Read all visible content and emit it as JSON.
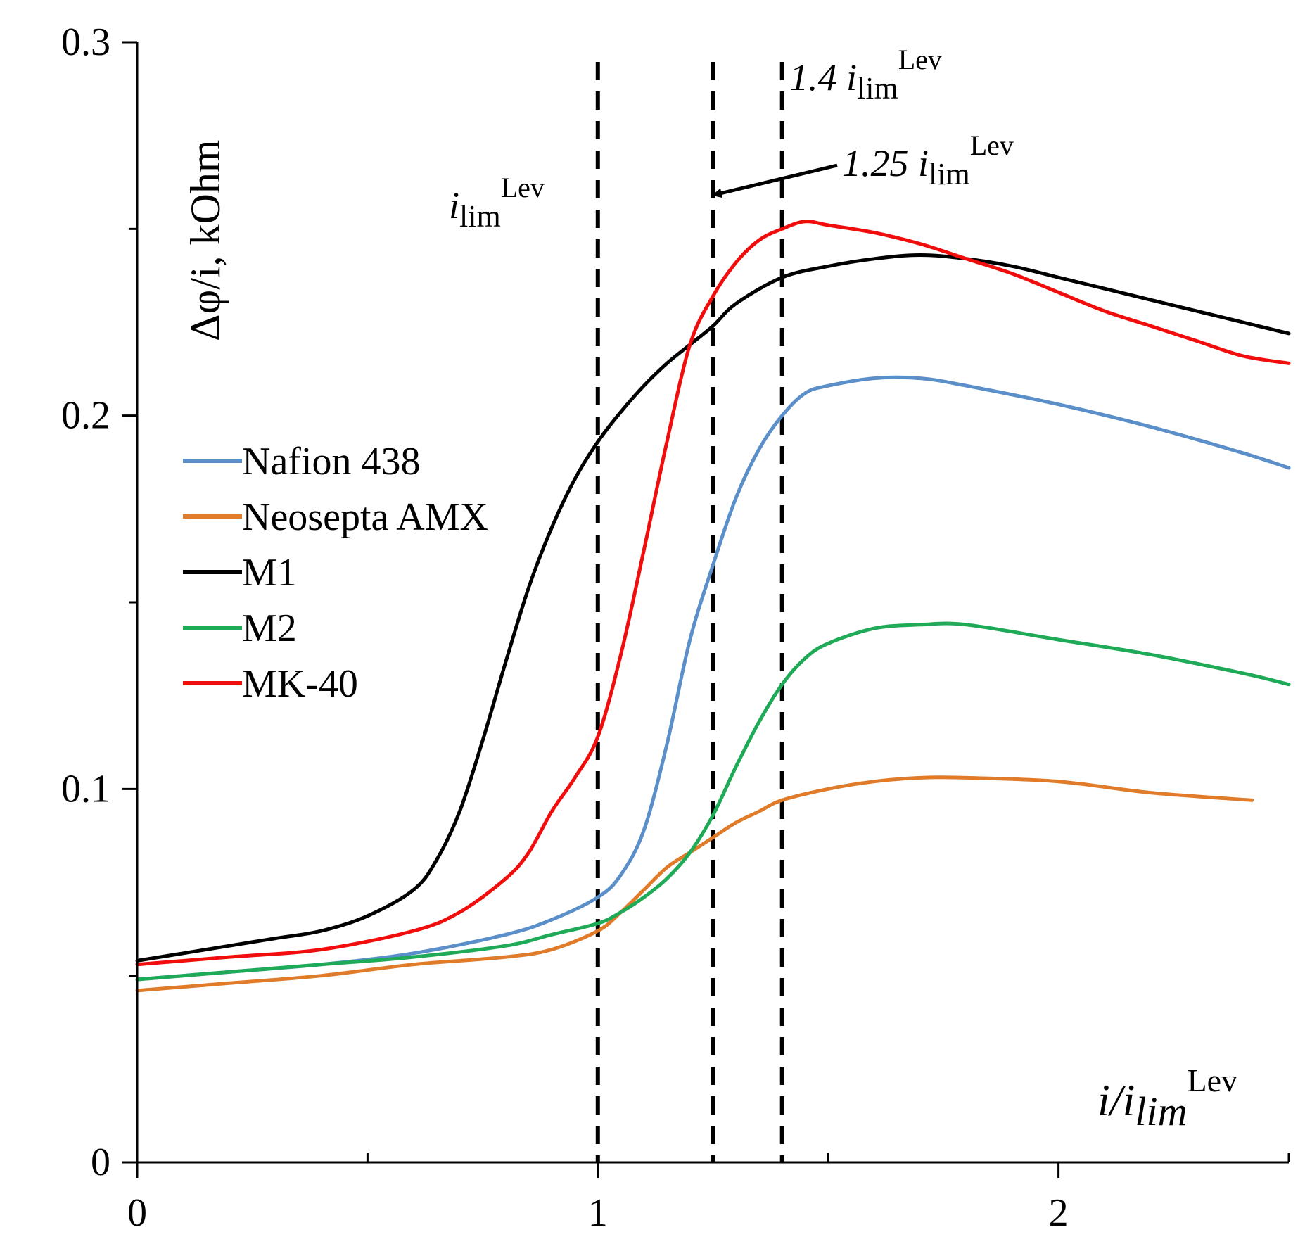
{
  "chart_data": {
    "type": "line",
    "title": "",
    "xlabel": {
      "main": "i/i",
      "sub": "lim",
      "sup": "Lev"
    },
    "ylabel": "Δφ/i, kOhm",
    "xlim": [
      0,
      2.5
    ],
    "ylim": [
      0,
      0.3
    ],
    "x_ticks": [
      0,
      1,
      2
    ],
    "x_tick_labels": [
      "0",
      "1",
      "2"
    ],
    "x_minor_ticks": [
      0.5,
      1.5,
      2.5
    ],
    "y_ticks": [
      0,
      0.1,
      0.2,
      0.3
    ],
    "y_tick_labels": [
      "0",
      "0.1",
      "0.2",
      "0.3"
    ],
    "y_minor_ticks": [
      0.05,
      0.15,
      0.25
    ],
    "grid": false,
    "legend_position": "left",
    "vlines": [
      {
        "x": 1.0,
        "label_main": "i",
        "label_sub": "lim",
        "label_sup": "Lev"
      },
      {
        "x": 1.25,
        "label_prefix": "1.25 ",
        "label_main": "i",
        "label_sub": "lim",
        "label_sup": "Lev"
      },
      {
        "x": 1.4,
        "label_prefix": "1.4 ",
        "label_main": "i",
        "label_sub": "lim",
        "label_sup": "Lev"
      }
    ],
    "series": [
      {
        "name": "Nafion 438",
        "color": "#5b8fc9",
        "x": [
          0.0,
          0.2,
          0.4,
          0.6,
          0.8,
          0.9,
          1.0,
          1.05,
          1.1,
          1.15,
          1.2,
          1.25,
          1.3,
          1.35,
          1.4,
          1.45,
          1.5,
          1.6,
          1.7,
          1.8,
          2.0,
          2.2,
          2.4,
          2.5
        ],
        "y": [
          0.049,
          0.051,
          0.053,
          0.056,
          0.061,
          0.065,
          0.071,
          0.077,
          0.089,
          0.112,
          0.14,
          0.16,
          0.178,
          0.191,
          0.2,
          0.206,
          0.208,
          0.21,
          0.21,
          0.208,
          0.203,
          0.197,
          0.19,
          0.186
        ]
      },
      {
        "name": "Neosepta AMX",
        "color": "#e07b29",
        "x": [
          0.0,
          0.2,
          0.4,
          0.6,
          0.8,
          0.9,
          1.0,
          1.05,
          1.1,
          1.15,
          1.2,
          1.25,
          1.3,
          1.35,
          1.4,
          1.5,
          1.6,
          1.7,
          1.8,
          2.0,
          2.2,
          2.42
        ],
        "y": [
          0.046,
          0.048,
          0.05,
          0.053,
          0.055,
          0.057,
          0.062,
          0.067,
          0.073,
          0.079,
          0.083,
          0.087,
          0.091,
          0.094,
          0.097,
          0.1,
          0.102,
          0.103,
          0.103,
          0.102,
          0.099,
          0.097
        ]
      },
      {
        "name": "M1",
        "color": "#000000",
        "x": [
          0.0,
          0.1,
          0.2,
          0.3,
          0.4,
          0.5,
          0.6,
          0.65,
          0.7,
          0.75,
          0.8,
          0.85,
          0.9,
          0.95,
          1.0,
          1.05,
          1.1,
          1.15,
          1.2,
          1.25,
          1.3,
          1.4,
          1.5,
          1.6,
          1.7,
          1.8,
          1.9,
          2.0,
          2.1,
          2.2,
          2.3,
          2.4,
          2.5
        ],
        "y": [
          0.054,
          0.056,
          0.058,
          0.06,
          0.062,
          0.066,
          0.073,
          0.081,
          0.094,
          0.113,
          0.134,
          0.154,
          0.17,
          0.183,
          0.193,
          0.201,
          0.208,
          0.214,
          0.219,
          0.224,
          0.23,
          0.237,
          0.24,
          0.242,
          0.243,
          0.242,
          0.24,
          0.237,
          0.234,
          0.231,
          0.228,
          0.225,
          0.222
        ]
      },
      {
        "name": "M2",
        "color": "#1eaa57",
        "x": [
          0.0,
          0.2,
          0.4,
          0.6,
          0.8,
          0.9,
          1.0,
          1.05,
          1.1,
          1.15,
          1.2,
          1.25,
          1.3,
          1.35,
          1.4,
          1.45,
          1.5,
          1.6,
          1.7,
          1.8,
          2.0,
          2.2,
          2.4,
          2.5
        ],
        "y": [
          0.049,
          0.051,
          0.053,
          0.055,
          0.058,
          0.061,
          0.064,
          0.067,
          0.071,
          0.076,
          0.083,
          0.093,
          0.106,
          0.118,
          0.128,
          0.135,
          0.139,
          0.143,
          0.144,
          0.144,
          0.14,
          0.136,
          0.131,
          0.128
        ]
      },
      {
        "name": "MK-40",
        "color": "#f20d0d",
        "x": [
          0.0,
          0.2,
          0.4,
          0.6,
          0.7,
          0.8,
          0.85,
          0.9,
          0.95,
          1.0,
          1.05,
          1.1,
          1.15,
          1.2,
          1.25,
          1.3,
          1.35,
          1.4,
          1.45,
          1.5,
          1.6,
          1.7,
          1.8,
          1.9,
          2.0,
          2.1,
          2.2,
          2.3,
          2.4,
          2.5
        ],
        "y": [
          0.053,
          0.055,
          0.057,
          0.062,
          0.067,
          0.076,
          0.083,
          0.094,
          0.103,
          0.114,
          0.136,
          0.164,
          0.193,
          0.219,
          0.232,
          0.241,
          0.247,
          0.25,
          0.252,
          0.251,
          0.249,
          0.246,
          0.242,
          0.238,
          0.233,
          0.228,
          0.224,
          0.22,
          0.216,
          0.214
        ]
      }
    ]
  }
}
